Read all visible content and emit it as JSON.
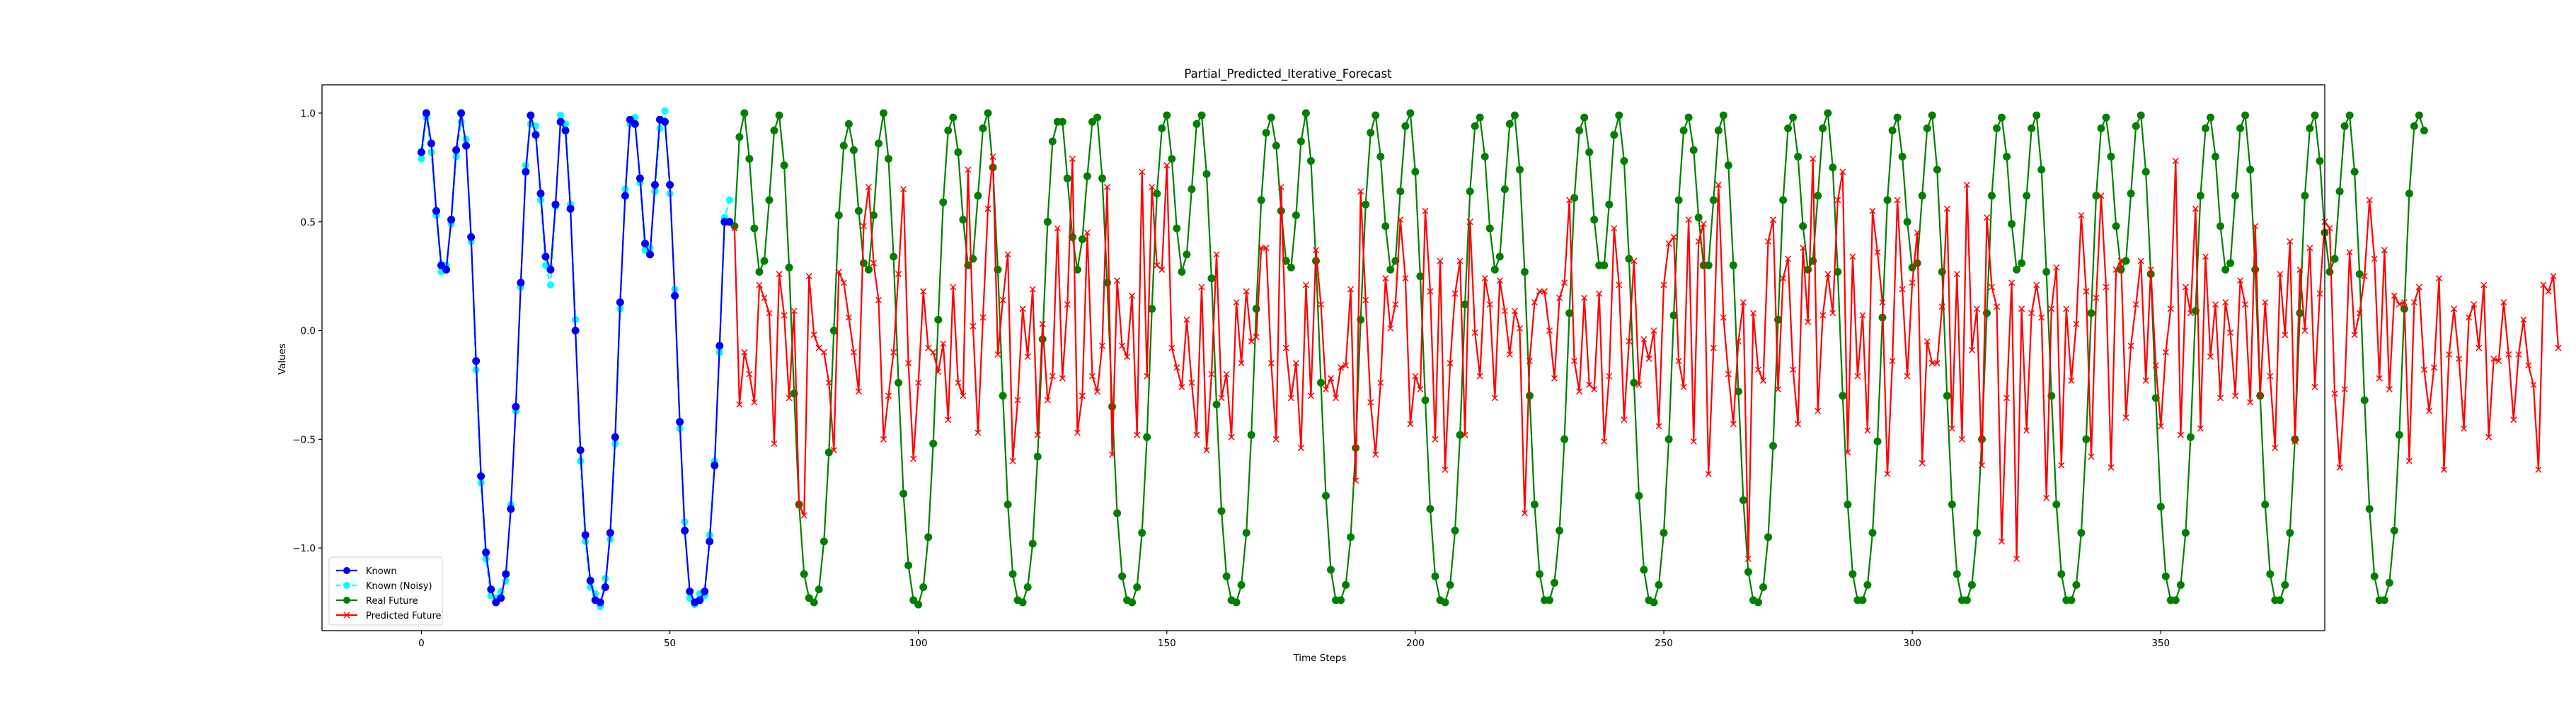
{
  "chart_data": {
    "type": "line",
    "title": "Partial_Predicted_Iterative_Forecast",
    "xlabel": "Time Steps",
    "ylabel": "Values",
    "xlim": [
      -20,
      383
    ],
    "ylim": [
      -1.38,
      1.13
    ],
    "x_ticks": [
      0,
      50,
      100,
      150,
      200,
      250,
      300,
      350
    ],
    "y_ticks": [
      -1.0,
      -0.5,
      0.0,
      0.5,
      1.0
    ],
    "x_tick_labels": [
      "0",
      "50",
      "100",
      "150",
      "200",
      "250",
      "300",
      "350"
    ],
    "y_tick_labels": [
      "−1.0",
      "−0.5",
      "0.0",
      "0.5",
      "1.0"
    ],
    "grid": false,
    "legend_position": "lower-left",
    "legend": [
      "Known",
      "Known (Noisy)",
      "Real Future",
      "Predicted Future"
    ],
    "series": [
      {
        "name": "Known",
        "color": "#0000ff",
        "marker": "circle",
        "x_start": 0,
        "values": [
          0.82,
          1.0,
          0.86,
          0.55,
          0.3,
          0.28,
          0.51,
          0.83,
          1.0,
          0.85,
          0.43,
          -0.14,
          -0.67,
          -1.02,
          -1.19,
          -1.25,
          -1.23,
          -1.12,
          -0.82,
          -0.35,
          0.22,
          0.73,
          0.99,
          0.9,
          0.63,
          0.34,
          0.28,
          0.58,
          0.96,
          0.92,
          0.56,
          0.0,
          -0.55,
          -0.94,
          -1.15,
          -1.24,
          -1.25,
          -1.18,
          -0.93,
          -0.49,
          0.13,
          0.62,
          0.97,
          0.95,
          0.7,
          0.4,
          0.35,
          0.67,
          0.97,
          0.96,
          0.67,
          0.16,
          -0.42,
          -0.92,
          -1.2,
          -1.25,
          -1.24,
          -1.2,
          -0.97,
          -0.62,
          -0.07,
          0.5,
          0.5
        ]
      },
      {
        "name": "Known (Noisy)",
        "color": "#00ffff",
        "marker": "circle",
        "x_start": 0,
        "values": [
          0.79,
          0.98,
          0.82,
          0.53,
          0.27,
          0.3,
          0.49,
          0.8,
          0.96,
          0.88,
          0.41,
          -0.18,
          -0.7,
          -1.05,
          -1.22,
          -1.23,
          -1.2,
          -1.15,
          -0.8,
          -0.37,
          0.2,
          0.76,
          0.95,
          0.94,
          0.6,
          0.3,
          0.21,
          0.57,
          0.99,
          0.95,
          0.58,
          0.05,
          -0.6,
          -0.97,
          -1.18,
          -1.21,
          -1.27,
          -1.14,
          -0.96,
          -0.52,
          0.1,
          0.65,
          0.95,
          0.98,
          0.68,
          0.37,
          0.38,
          0.64,
          0.93,
          1.01,
          0.63,
          0.19,
          -0.45,
          -0.88,
          -1.23,
          -1.26,
          -1.21,
          -1.22,
          -0.94,
          -0.6,
          -0.1,
          0.52,
          0.6
        ]
      },
      {
        "name": "Real Future",
        "color": "#008000",
        "marker": "circle",
        "x_start": 63,
        "values": [
          0.48,
          0.89,
          1.0,
          0.79,
          0.47,
          0.27,
          0.32,
          0.6,
          0.92,
          0.99,
          0.76,
          0.29,
          -0.29,
          -0.8,
          -1.12,
          -1.23,
          -1.25,
          -1.19,
          -0.97,
          -0.56,
          0.0,
          0.53,
          0.85,
          0.95,
          0.83,
          0.55,
          0.31,
          0.28,
          0.53,
          0.86,
          1.0,
          0.79,
          0.34,
          -0.24,
          -0.75,
          -1.08,
          -1.24,
          -1.26,
          -1.18,
          -0.95,
          -0.52,
          0.05,
          0.59,
          0.92,
          0.98,
          0.82,
          0.51,
          0.3,
          0.33,
          0.62,
          0.93,
          1.0,
          0.75,
          0.28,
          -0.3,
          -0.8,
          -1.12,
          -1.24,
          -1.25,
          -1.18,
          -0.98,
          -0.58,
          -0.04,
          0.5,
          0.87,
          0.96,
          0.96,
          0.7,
          0.43,
          0.28,
          0.42,
          0.71,
          0.96,
          0.98,
          0.7,
          0.22,
          -0.35,
          -0.84,
          -1.13,
          -1.24,
          -1.25,
          -1.18,
          -0.93,
          -0.49,
          0.1,
          0.63,
          0.93,
          0.99,
          0.79,
          0.47,
          0.27,
          0.35,
          0.65,
          0.95,
          0.99,
          0.72,
          0.24,
          -0.34,
          -0.83,
          -1.13,
          -1.24,
          -1.25,
          -1.17,
          -0.93,
          -0.48,
          0.1,
          0.6,
          0.91,
          0.98,
          0.85,
          0.55,
          0.32,
          0.29,
          0.53,
          0.87,
          1.0,
          0.78,
          0.32,
          -0.24,
          -0.76,
          -1.1,
          -1.24,
          -1.24,
          -1.17,
          -0.95,
          -0.54,
          0.05,
          0.58,
          0.91,
          0.99,
          0.8,
          0.48,
          0.28,
          0.32,
          0.64,
          0.94,
          1.0,
          0.73,
          0.25,
          -0.32,
          -0.82,
          -1.13,
          -1.24,
          -1.25,
          -1.17,
          -0.92,
          -0.48,
          0.12,
          0.64,
          0.94,
          0.98,
          0.8,
          0.47,
          0.28,
          0.34,
          0.65,
          0.95,
          0.99,
          0.74,
          0.27,
          -0.3,
          -0.8,
          -1.12,
          -1.24,
          -1.24,
          -1.16,
          -0.92,
          -0.5,
          0.08,
          0.61,
          0.92,
          0.98,
          0.82,
          0.51,
          0.3,
          0.3,
          0.58,
          0.9,
          0.99,
          0.78,
          0.33,
          -0.24,
          -0.76,
          -1.1,
          -1.24,
          -1.25,
          -1.17,
          -0.93,
          -0.5,
          0.07,
          0.6,
          0.92,
          0.98,
          0.83,
          0.52,
          0.3,
          0.3,
          0.6,
          0.92,
          0.99,
          0.76,
          0.3,
          -0.28,
          -0.78,
          -1.11,
          -1.24,
          -1.25,
          -1.18,
          -0.95,
          -0.53,
          0.05,
          0.6,
          0.93,
          0.98,
          0.8,
          0.48,
          0.28,
          0.32,
          0.62,
          0.93,
          1.0,
          0.75,
          0.27,
          -0.3,
          -0.8,
          -1.12,
          -1.24,
          -1.24,
          -1.17,
          -0.93,
          -0.51,
          0.06,
          0.6,
          0.92,
          0.98,
          0.8,
          0.5,
          0.29,
          0.31,
          0.62,
          0.93,
          0.99,
          0.74,
          0.27,
          -0.3,
          -0.8,
          -1.12,
          -1.24,
          -1.24,
          -1.17,
          -0.93,
          -0.5,
          0.08,
          0.62,
          0.93,
          0.98,
          0.8,
          0.49,
          0.28,
          0.31,
          0.62,
          0.93,
          0.99,
          0.74,
          0.27,
          -0.3,
          -0.8,
          -1.12,
          -1.24,
          -1.24,
          -1.17,
          -0.93,
          -0.5,
          0.08,
          0.62,
          0.93,
          0.98,
          0.8,
          0.48,
          0.28,
          0.32,
          0.63,
          0.94,
          0.99,
          0.73,
          0.26,
          -0.31,
          -0.81,
          -1.13,
          -1.24,
          -1.24,
          -1.17,
          -0.93,
          -0.49,
          0.09,
          0.62,
          0.93,
          0.98,
          0.8,
          0.48,
          0.28,
          0.31,
          0.62,
          0.93,
          0.99,
          0.74,
          0.28,
          -0.3,
          -0.8,
          -1.12,
          -1.24,
          -1.24,
          -1.17,
          -0.93,
          -0.5,
          0.08,
          0.62,
          0.93,
          0.99,
          0.78,
          0.45,
          0.27,
          0.33,
          0.64,
          0.94,
          0.99,
          0.73,
          0.26,
          -0.32,
          -0.82,
          -1.13,
          -1.24,
          -1.24,
          -1.16,
          -0.92,
          -0.48,
          0.1,
          0.63,
          0.94,
          0.99,
          0.92
        ]
      },
      {
        "name": "Predicted Future",
        "color": "#ff0000",
        "marker": "x",
        "x_start": 63,
        "values": [
          0.47,
          -0.34,
          -0.1,
          -0.2,
          -0.33,
          0.21,
          0.15,
          0.08,
          -0.52,
          0.26,
          0.07,
          -0.31,
          0.09,
          -0.8,
          -0.85,
          0.25,
          -0.02,
          -0.08,
          -0.1,
          -0.24,
          -0.55,
          0.27,
          0.22,
          0.06,
          -0.1,
          -0.28,
          0.48,
          0.66,
          0.31,
          0.14,
          -0.5,
          -0.3,
          -0.1,
          0.26,
          0.65,
          -0.15,
          -0.59,
          -0.24,
          0.18,
          -0.08,
          -0.1,
          -0.19,
          -0.06,
          -0.41,
          0.2,
          -0.24,
          -0.3,
          0.74,
          0.02,
          -0.47,
          0.06,
          0.56,
          0.8,
          -0.11,
          0.14,
          0.35,
          -0.6,
          -0.32,
          0.1,
          -0.12,
          0.19,
          -0.48,
          0.03,
          -0.32,
          -0.21,
          0.47,
          -0.22,
          0.12,
          0.79,
          -0.47,
          -0.3,
          0.45,
          -0.21,
          -0.28,
          -0.07,
          0.66,
          -0.57,
          0.23,
          -0.07,
          -0.12,
          0.16,
          -0.48,
          0.73,
          -0.21,
          0.66,
          0.3,
          0.28,
          0.76,
          -0.08,
          -0.17,
          -0.26,
          0.05,
          -0.24,
          -0.48,
          0.2,
          -0.55,
          -0.2,
          0.35,
          -0.31,
          -0.2,
          -0.49,
          0.13,
          -0.15,
          0.18,
          -0.05,
          -0.03,
          0.38,
          0.38,
          -0.15,
          -0.5,
          0.66,
          -0.08,
          -0.31,
          -0.15,
          -0.54,
          0.21,
          -0.3,
          0.37,
          0.12,
          -0.27,
          -0.22,
          -0.31,
          -0.17,
          -0.16,
          0.19,
          -0.69,
          0.64,
          0.14,
          -0.33,
          -0.57,
          -0.24,
          0.24,
          0.01,
          0.12,
          0.51,
          0.24,
          -0.43,
          -0.21,
          -0.27,
          0.55,
          0.18,
          -0.5,
          0.32,
          -0.64,
          -0.15,
          0.17,
          0.32,
          -0.48,
          0.5,
          -0.01,
          -0.21,
          0.24,
          0.12,
          -0.31,
          0.23,
          0.09,
          -0.11,
          0.09,
          0.01,
          -0.84,
          -0.14,
          0.13,
          0.18,
          0.18,
          0.0,
          -0.22,
          0.15,
          0.22,
          0.6,
          -0.14,
          -0.28,
          0.15,
          -0.25,
          -0.27,
          0.17,
          -0.51,
          -0.21,
          0.47,
          0.21,
          -0.41,
          -0.05,
          0.32,
          -0.25,
          -0.04,
          -0.13,
          0.0,
          -0.44,
          0.21,
          0.4,
          0.43,
          -0.14,
          -0.26,
          0.51,
          -0.51,
          0.41,
          0.49,
          -0.66,
          -0.08,
          0.67,
          0.06,
          -0.2,
          -0.43,
          -0.05,
          0.13,
          -1.05,
          0.08,
          -0.18,
          -0.23,
          0.41,
          0.51,
          -0.27,
          0.24,
          0.33,
          -0.18,
          -0.43,
          0.38,
          0.04,
          0.79,
          -0.37,
          0.07,
          0.26,
          0.08,
          0.6,
          0.73,
          -0.56,
          0.34,
          -0.21,
          0.07,
          -0.46,
          0.55,
          0.36,
          0.13,
          -0.66,
          -0.14,
          0.6,
          0.19,
          -0.21,
          0.22,
          0.45,
          -0.61,
          -0.05,
          -0.15,
          -0.15,
          0.11,
          0.56,
          -0.45,
          0.26,
          -0.5,
          0.67,
          -0.09,
          0.1,
          -0.62,
          0.52,
          0.2,
          0.11,
          -0.97,
          -0.31,
          0.22,
          -1.05,
          0.1,
          -0.46,
          0.08,
          0.21,
          0.06,
          -0.77,
          0.1,
          0.29,
          -0.62,
          0.1,
          -0.23,
          0.03,
          0.53,
          0.18,
          -0.58,
          0.15,
          0.62,
          0.2,
          -0.63,
          0.28,
          0.32,
          -0.4,
          -0.07,
          0.12,
          0.32,
          -0.23,
          0.28,
          -0.16,
          -0.44,
          -0.1,
          0.1,
          0.78,
          -0.48,
          0.2,
          0.08,
          0.56,
          -0.45,
          0.34,
          -0.12,
          0.12,
          -0.31,
          0.13,
          -0.01,
          -0.3,
          0.23,
          0.12,
          -0.33,
          0.48,
          -0.3,
          0.13,
          -0.21,
          -0.54,
          0.26,
          -0.02,
          0.41,
          -0.51,
          0.28,
          0.0,
          0.38,
          -0.26,
          0.17,
          0.5,
          0.47,
          -0.29,
          -0.63,
          -0.27,
          0.36,
          -0.02,
          0.08,
          0.25,
          0.6,
          0.33,
          -0.22,
          0.37,
          -0.27,
          0.16,
          0.12,
          0.13,
          -0.6,
          0.13,
          0.2,
          -0.18,
          -0.37,
          -0.17,
          0.24,
          -0.64,
          -0.11,
          0.1,
          -0.13,
          -0.45,
          0.06,
          0.12,
          -0.08,
          0.21,
          -0.49,
          -0.13,
          -0.14,
          0.13,
          -0.11,
          -0.41,
          -0.11,
          0.05,
          -0.16,
          -0.25,
          -0.64,
          0.21,
          0.18,
          0.25,
          -0.08
        ]
      }
    ]
  }
}
